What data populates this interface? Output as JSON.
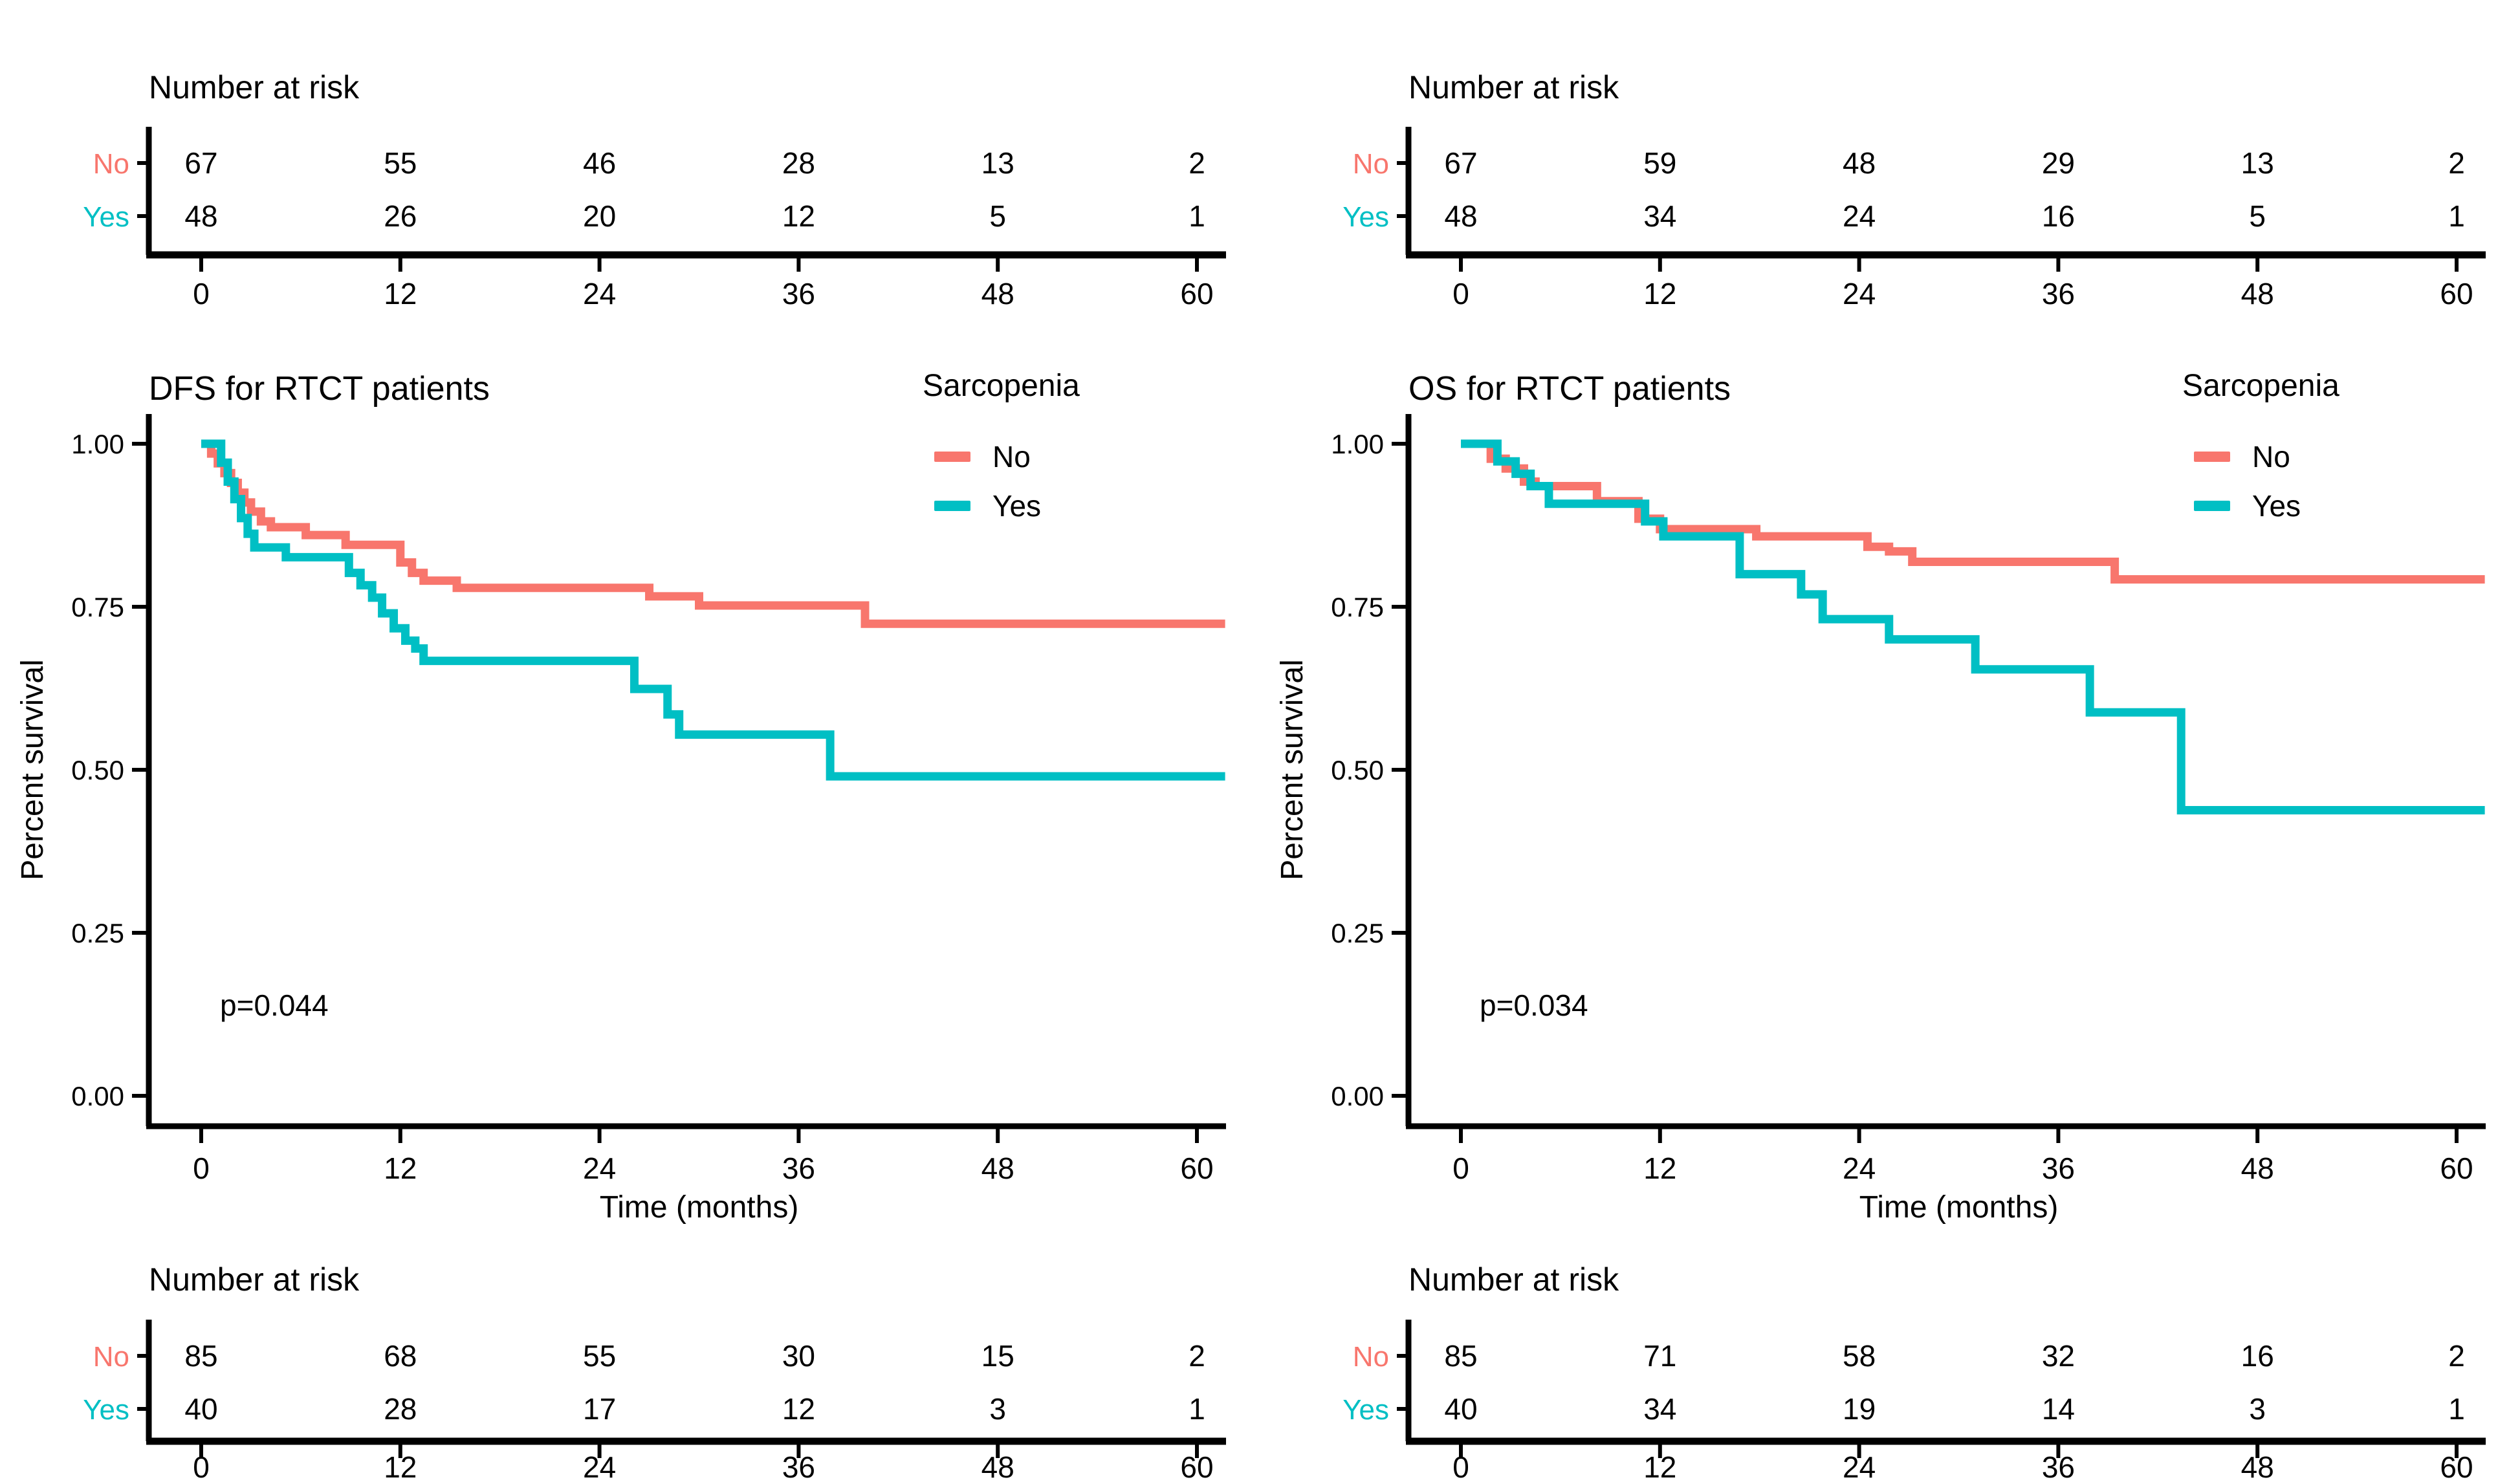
{
  "figure": {
    "background": "#ffffff",
    "text_color": "#000000",
    "axis_color": "#000000",
    "legend_title": "Sarcopenia",
    "risk_table_title": "Number at risk",
    "x_axis_label": "Time (months)",
    "y_axis_label": "Percent survival",
    "x_ticks": [
      0,
      12,
      24,
      36,
      48,
      60
    ],
    "y_ticks": [
      1.0,
      0.75,
      0.5,
      0.25,
      0.0
    ],
    "y_tick_labels": [
      "1.00",
      "0.75",
      "0.50",
      "0.25",
      "0.00"
    ],
    "group_colors": {
      "No": "#F8766D",
      "Yes": "#00BFC4"
    }
  },
  "chart_data": [
    {
      "type": "line",
      "subtype": "kaplan-meier-step",
      "title": "DFS for RTCT patients",
      "xlabel": "Time (months)",
      "ylabel": "Percent survival",
      "legend_title": "Sarcopenia",
      "legend_position": "top-right",
      "annotation": "p=0.044",
      "xlim": [
        0,
        63
      ],
      "ylim": [
        0,
        1
      ],
      "x_ticks": [
        0,
        12,
        24,
        36,
        48,
        60
      ],
      "y_ticks": [
        "1.00",
        "0.75",
        "0.50",
        "0.25",
        "0.00"
      ],
      "grid": false,
      "series": [
        {
          "name": "No",
          "color": "#F8766D",
          "points": [
            [
              0,
              1.0
            ],
            [
              0.6,
              0.985
            ],
            [
              1.0,
              0.97
            ],
            [
              1.4,
              0.955
            ],
            [
              1.8,
              0.94
            ],
            [
              2.2,
              0.925
            ],
            [
              2.6,
              0.91
            ],
            [
              3.0,
              0.896
            ],
            [
              3.6,
              0.881
            ],
            [
              4.2,
              0.872
            ],
            [
              6.3,
              0.86
            ],
            [
              8.7,
              0.845
            ],
            [
              12.0,
              0.818
            ],
            [
              12.7,
              0.802
            ],
            [
              13.4,
              0.79
            ],
            [
              15.4,
              0.779
            ],
            [
              27.0,
              0.766
            ],
            [
              30.0,
              0.752
            ],
            [
              40.0,
              0.724
            ],
            [
              61.7,
              0.724
            ]
          ]
        },
        {
          "name": "Yes",
          "color": "#00BFC4",
          "points": [
            [
              0,
              1.0
            ],
            [
              1.2,
              0.971
            ],
            [
              1.6,
              0.942
            ],
            [
              2.0,
              0.915
            ],
            [
              2.4,
              0.886
            ],
            [
              2.8,
              0.862
            ],
            [
              3.2,
              0.841
            ],
            [
              5.1,
              0.826
            ],
            [
              8.9,
              0.802
            ],
            [
              9.6,
              0.783
            ],
            [
              10.3,
              0.764
            ],
            [
              10.9,
              0.74
            ],
            [
              11.6,
              0.717
            ],
            [
              12.3,
              0.698
            ],
            [
              12.9,
              0.686
            ],
            [
              13.4,
              0.667
            ],
            [
              26.1,
              0.624
            ],
            [
              28.1,
              0.585
            ],
            [
              28.8,
              0.554
            ],
            [
              37.9,
              0.49
            ],
            [
              61.7,
              0.49
            ]
          ]
        }
      ],
      "risk_table_above": {
        "title": "Number at risk",
        "times": [
          0,
          12,
          24,
          36,
          48,
          60
        ],
        "rows": [
          {
            "label": "No",
            "color": "#F8766D",
            "values": [
              67,
              55,
              46,
              28,
              13,
              2
            ]
          },
          {
            "label": "Yes",
            "color": "#00BFC4",
            "values": [
              48,
              26,
              20,
              12,
              5,
              1
            ]
          }
        ]
      },
      "risk_table_below": {
        "title": "Number at risk",
        "times": [
          0,
          12,
          24,
          36,
          48,
          60
        ],
        "rows": [
          {
            "label": "No",
            "color": "#F8766D",
            "values": [
              85,
              68,
              55,
              30,
              15,
              2
            ]
          },
          {
            "label": "Yes",
            "color": "#00BFC4",
            "values": [
              40,
              28,
              17,
              12,
              3,
              1
            ]
          }
        ]
      }
    },
    {
      "type": "line",
      "subtype": "kaplan-meier-step",
      "title": "OS for RTCT patients",
      "xlabel": "Time (months)",
      "ylabel": "Percent survival",
      "legend_title": "Sarcopenia",
      "legend_position": "top-right",
      "annotation": "p=0.034",
      "xlim": [
        0,
        63
      ],
      "ylim": [
        0,
        1
      ],
      "x_ticks": [
        0,
        12,
        24,
        36,
        48,
        60
      ],
      "y_ticks": [
        "1.00",
        "0.75",
        "0.50",
        "0.25",
        "0.00"
      ],
      "grid": false,
      "series": [
        {
          "name": "No",
          "color": "#F8766D",
          "points": [
            [
              0,
              1.0
            ],
            [
              1.8,
              0.977
            ],
            [
              2.7,
              0.962
            ],
            [
              3.8,
              0.942
            ],
            [
              4.5,
              0.935
            ],
            [
              8.2,
              0.912
            ],
            [
              10.7,
              0.885
            ],
            [
              12.0,
              0.869
            ],
            [
              17.8,
              0.858
            ],
            [
              24.5,
              0.842
            ],
            [
              25.8,
              0.835
            ],
            [
              27.2,
              0.819
            ],
            [
              39.4,
              0.792
            ],
            [
              61.7,
              0.792
            ]
          ]
        },
        {
          "name": "Yes",
          "color": "#00BFC4",
          "points": [
            [
              0,
              1.0
            ],
            [
              2.2,
              0.973
            ],
            [
              3.3,
              0.954
            ],
            [
              4.2,
              0.935
            ],
            [
              5.3,
              0.908
            ],
            [
              11.1,
              0.881
            ],
            [
              12.2,
              0.858
            ],
            [
              16.8,
              0.8
            ],
            [
              20.5,
              0.769
            ],
            [
              21.8,
              0.731
            ],
            [
              25.8,
              0.7
            ],
            [
              31.0,
              0.654
            ],
            [
              37.9,
              0.588
            ],
            [
              43.4,
              0.438
            ],
            [
              61.7,
              0.438
            ]
          ]
        }
      ],
      "risk_table_above": {
        "title": "Number at risk",
        "times": [
          0,
          12,
          24,
          36,
          48,
          60
        ],
        "rows": [
          {
            "label": "No",
            "color": "#F8766D",
            "values": [
              67,
              59,
              48,
              29,
              13,
              2
            ]
          },
          {
            "label": "Yes",
            "color": "#00BFC4",
            "values": [
              48,
              34,
              24,
              16,
              5,
              1
            ]
          }
        ]
      },
      "risk_table_below": {
        "title": "Number at risk",
        "times": [
          0,
          12,
          24,
          36,
          48,
          60
        ],
        "rows": [
          {
            "label": "No",
            "color": "#F8766D",
            "values": [
              85,
              71,
              58,
              32,
              16,
              2
            ]
          },
          {
            "label": "Yes",
            "color": "#00BFC4",
            "values": [
              40,
              34,
              19,
              14,
              3,
              1
            ]
          }
        ]
      }
    }
  ]
}
